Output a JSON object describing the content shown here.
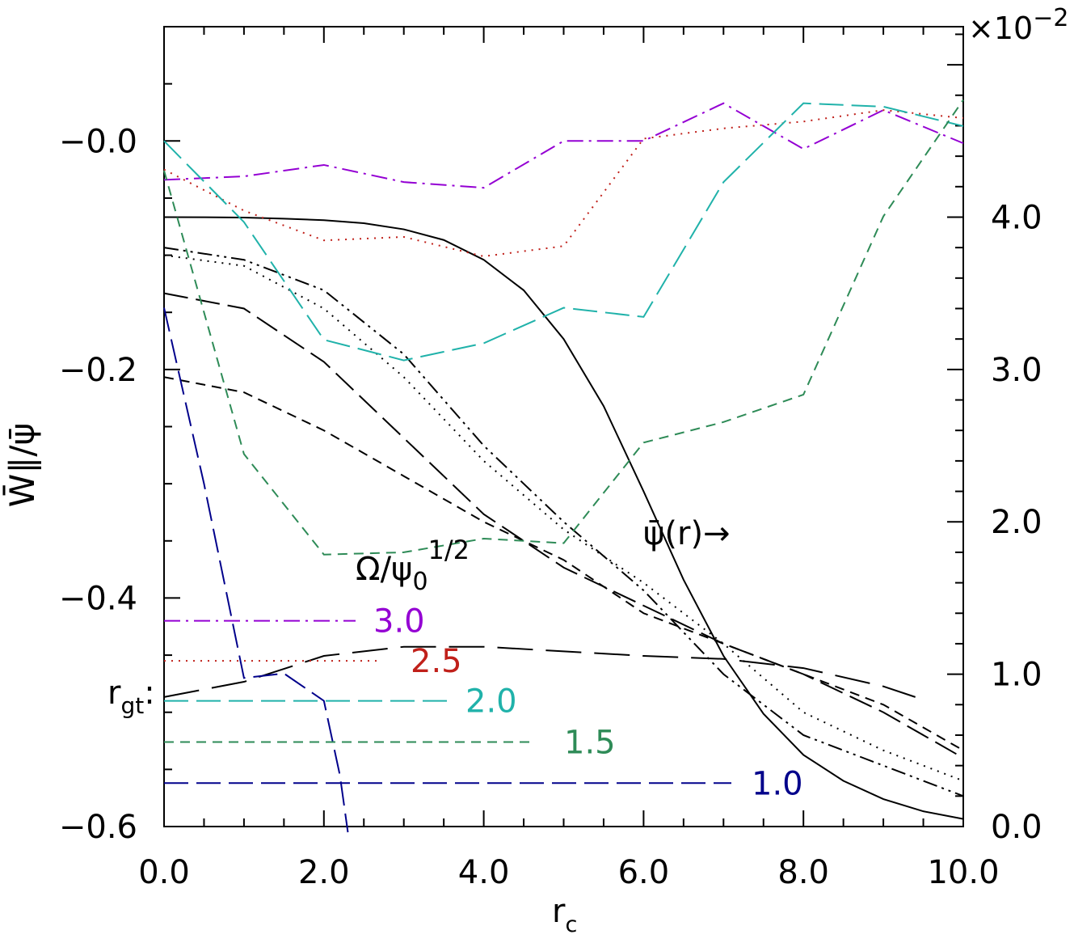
{
  "chart_data": {
    "type": "line",
    "xlabel_main": "r",
    "xlabel_sub": "c",
    "ylabel_left": "W̄∥/ψ̄",
    "ylabel_right_multiplier": "×10",
    "ylabel_right_exponent": "−2",
    "xlim": [
      0,
      10
    ],
    "ylim_left": [
      -0.6,
      0.1
    ],
    "ylim_right": [
      0,
      5.25
    ],
    "x_ticks": [
      "0.0",
      "2.0",
      "4.0",
      "6.0",
      "8.0",
      "10.0"
    ],
    "y_ticks_left": [
      "−0.0",
      "−0.2",
      "−0.4",
      "−0.6"
    ],
    "y_ticks_right": [
      "0.0",
      "1.0",
      "2.0",
      "3.0",
      "4.0"
    ],
    "annotations": {
      "psi_label": "ψ̄(r)→",
      "omega_label_main": "Ω/ψ",
      "omega_label_sub": "0",
      "omega_label_sup": "1/2",
      "rgt_main": "r",
      "rgt_sub": "gt",
      "rgt_colon": ":"
    },
    "left_axis_series": [
      {
        "name": "3.0",
        "color": "#9400d3",
        "dash": "dashdot",
        "x": [
          0,
          1,
          2,
          3,
          4,
          5,
          6,
          7,
          8,
          9,
          10
        ],
        "y": [
          -0.034,
          -0.031,
          -0.021,
          -0.036,
          -0.041,
          0.0,
          0.0,
          0.033,
          -0.007,
          0.027,
          -0.002
        ]
      },
      {
        "name": "2.5",
        "color": "#c0201a",
        "dash": "dotted",
        "x": [
          0,
          1,
          2,
          3,
          4,
          5,
          6,
          7,
          8,
          9,
          10
        ],
        "y": [
          -0.025,
          -0.061,
          -0.087,
          -0.084,
          -0.101,
          -0.092,
          0.002,
          0.011,
          0.017,
          0.027,
          0.02
        ]
      },
      {
        "name": "2.0",
        "color": "#20b2aa",
        "dash": "longdash",
        "x": [
          0,
          1,
          2,
          3,
          4,
          5,
          6,
          7,
          8,
          9,
          10
        ],
        "y": [
          0.0,
          -0.071,
          -0.174,
          -0.192,
          -0.177,
          -0.146,
          -0.154,
          -0.036,
          0.033,
          0.03,
          0.013
        ]
      },
      {
        "name": "1.5",
        "color": "#2e8b57",
        "dash": "dash",
        "x": [
          0,
          1,
          2,
          3,
          4,
          5,
          6,
          7,
          8,
          9,
          10
        ],
        "y": [
          -0.026,
          -0.274,
          -0.362,
          -0.36,
          -0.348,
          -0.352,
          -0.264,
          -0.246,
          -0.222,
          -0.066,
          0.036
        ]
      },
      {
        "name": "1.0",
        "color": "#00008b",
        "dash": "longdash",
        "x": [
          0,
          0.5,
          1,
          1.5,
          2,
          2.2,
          2.3
        ],
        "y": [
          -0.146,
          -0.3,
          -0.47,
          -0.466,
          -0.49,
          -0.555,
          -0.605
        ]
      }
    ],
    "left_axis_legend_values": [
      -0.42,
      -0.455,
      -0.49,
      -0.526,
      -0.562
    ],
    "right_axis_series": [
      {
        "name": "ψ̄(r)",
        "color": "#000000",
        "dash": "solid",
        "x": [
          0,
          0.5,
          1,
          1.5,
          2,
          2.5,
          3,
          3.5,
          4,
          4.5,
          5,
          5.5,
          6,
          6.5,
          7,
          7.5,
          8,
          8.5,
          9,
          9.5,
          10
        ],
        "y": [
          4.0,
          3.999,
          3.997,
          3.99,
          3.98,
          3.96,
          3.92,
          3.85,
          3.72,
          3.52,
          3.2,
          2.76,
          2.2,
          1.62,
          1.12,
          0.74,
          0.47,
          0.3,
          0.18,
          0.1,
          0.05
        ]
      },
      {
        "name": "",
        "color": "#000000",
        "dash": "dashdotdot",
        "x": [
          0,
          1,
          2,
          3,
          4,
          5,
          6,
          7,
          8,
          9,
          10
        ],
        "y": [
          3.8,
          3.72,
          3.52,
          3.1,
          2.5,
          2.0,
          1.55,
          1.0,
          0.6,
          0.4,
          0.2
        ]
      },
      {
        "name": "",
        "color": "#000000",
        "dash": "dotted",
        "x": [
          0,
          1,
          2,
          3,
          4,
          5,
          6,
          7,
          8,
          9,
          10
        ],
        "y": [
          3.75,
          3.68,
          3.4,
          2.95,
          2.4,
          1.95,
          1.6,
          1.2,
          0.75,
          0.5,
          0.3
        ]
      },
      {
        "name": "",
        "color": "#000000",
        "dash": "longdash",
        "x": [
          0,
          1,
          2,
          3,
          4,
          5,
          6,
          7,
          8,
          9,
          10
        ],
        "y": [
          3.5,
          3.4,
          3.05,
          2.55,
          2.05,
          1.7,
          1.45,
          1.2,
          1.0,
          0.75,
          0.45
        ]
      },
      {
        "name": "",
        "color": "#000000",
        "dash": "dash",
        "x": [
          0,
          1,
          2,
          3,
          4,
          5,
          6,
          7,
          8,
          9,
          10
        ],
        "y": [
          2.95,
          2.85,
          2.6,
          2.3,
          2.0,
          1.75,
          1.4,
          1.2,
          1.0,
          0.8,
          0.5
        ]
      },
      {
        "name": "",
        "color": "#000000",
        "dash": "xlongdash",
        "x": [
          0,
          1,
          2,
          3,
          4,
          5,
          6,
          7,
          8,
          9,
          9.4
        ],
        "y": [
          0.85,
          0.95,
          1.12,
          1.18,
          1.18,
          1.15,
          1.12,
          1.1,
          1.04,
          0.92,
          0.85
        ]
      }
    ]
  }
}
